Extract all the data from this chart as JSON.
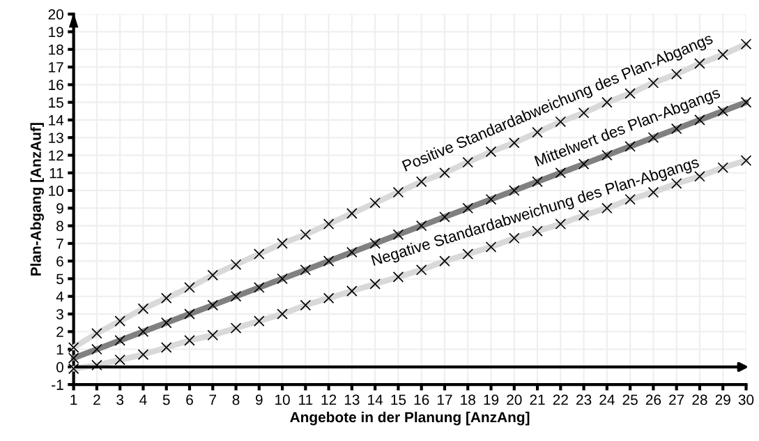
{
  "chart_data": {
    "type": "line",
    "xlabel": "Angebote in der Planung [AnzAng]",
    "ylabel": "Plan-Abgang [AnzAuf]",
    "x": [
      1,
      2,
      3,
      4,
      5,
      6,
      7,
      8,
      9,
      10,
      11,
      12,
      13,
      14,
      15,
      16,
      17,
      18,
      19,
      20,
      21,
      22,
      23,
      24,
      25,
      26,
      27,
      28,
      29,
      30
    ],
    "series": [
      {
        "color": "#d9d9d9",
        "values": [
          1.1,
          1.9,
          2.6,
          3.3,
          3.9,
          4.5,
          5.2,
          5.8,
          6.4,
          7.0,
          7.5,
          8.1,
          8.7,
          9.3,
          9.9,
          10.5,
          11.0,
          11.6,
          12.2,
          12.7,
          13.3,
          13.9,
          14.4,
          15.0,
          15.5,
          16.1,
          16.6,
          17.2,
          17.7,
          18.3
        ]
      },
      {
        "color": "#808080",
        "values": [
          0.5,
          1.0,
          1.5,
          2.0,
          2.5,
          3.0,
          3.5,
          4.0,
          4.5,
          5.0,
          5.5,
          6.0,
          6.5,
          7.0,
          7.5,
          8.0,
          8.5,
          9.0,
          9.5,
          10.0,
          10.5,
          11.0,
          11.5,
          12.0,
          12.5,
          13.0,
          13.5,
          14.0,
          14.5,
          15.0
        ]
      },
      {
        "color": "#d9d9d9",
        "values": [
          -0.1,
          0.1,
          0.4,
          0.7,
          1.1,
          1.5,
          1.8,
          2.2,
          2.6,
          3.0,
          3.5,
          3.9,
          4.3,
          4.7,
          5.1,
          5.5,
          6.0,
          6.4,
          6.8,
          7.3,
          7.7,
          8.1,
          8.6,
          9.0,
          9.5,
          9.9,
          10.4,
          10.8,
          11.3,
          11.7
        ]
      }
    ],
    "annotations": [
      {
        "text": "Positive Standardabweichung des Plan-Abgangs",
        "x": 22,
        "y": 13.9
      },
      {
        "text": "Mittelwert des Plan-Abgangs",
        "x": 25,
        "y": 12.5
      },
      {
        "text": "Negative Standardabweichung des Plan-Abgangs",
        "x": 21,
        "y": 7.7
      }
    ],
    "xlim": [
      1,
      30
    ],
    "ylim": [
      -1,
      20
    ],
    "xticks": [
      1,
      2,
      3,
      4,
      5,
      6,
      7,
      8,
      9,
      10,
      11,
      12,
      13,
      14,
      15,
      16,
      17,
      18,
      19,
      20,
      21,
      22,
      23,
      24,
      25,
      26,
      27,
      28,
      29,
      30
    ],
    "yticks": [
      -1,
      0,
      1,
      2,
      3,
      4,
      5,
      6,
      7,
      8,
      9,
      10,
      11,
      12,
      13,
      14,
      15,
      16,
      17,
      18,
      19,
      20
    ],
    "grid": true,
    "marker": "cross",
    "line_style": "solid",
    "legend": false
  }
}
